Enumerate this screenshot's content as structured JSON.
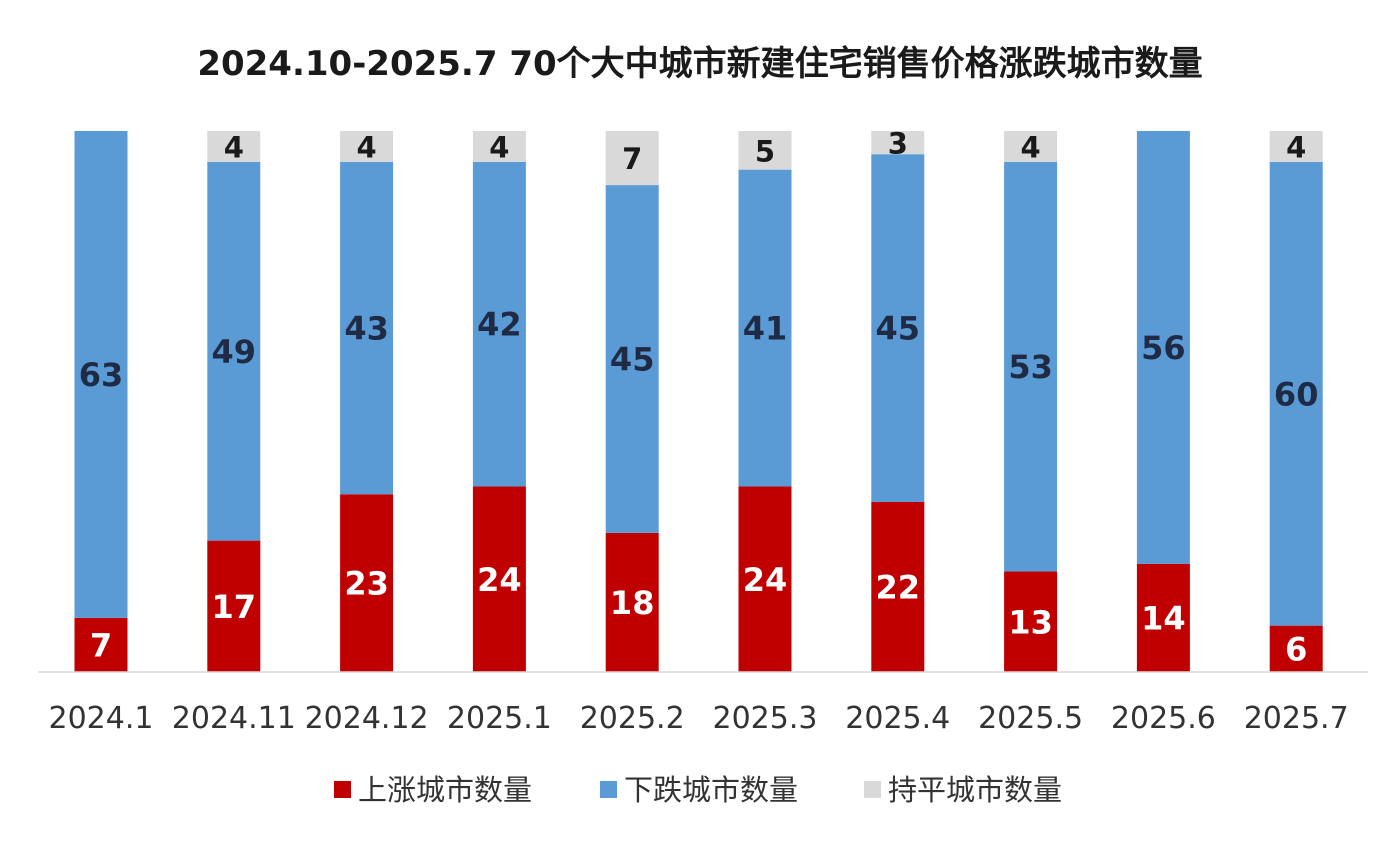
{
  "chart_data": {
    "type": "bar",
    "stacked": true,
    "title": "2024.10-2025.7  70个大中城市新建住宅销售价格涨跌城市数量",
    "categories": [
      "2024.1",
      "2024.11",
      "2024.12",
      "2025.1",
      "2025.2",
      "2025.3",
      "2025.4",
      "2025.5",
      "2025.6",
      "2025.7"
    ],
    "series": [
      {
        "name": "上涨城市数量",
        "color": "#c00000",
        "values": [
          7,
          17,
          23,
          24,
          18,
          24,
          22,
          13,
          14,
          6
        ]
      },
      {
        "name": "下跌城市数量",
        "color": "#5b9bd5",
        "values": [
          63,
          49,
          43,
          42,
          45,
          41,
          45,
          53,
          56,
          60
        ]
      },
      {
        "name": "持平城市数量",
        "color": "#d9d9d9",
        "values": [
          0,
          4,
          4,
          4,
          7,
          5,
          3,
          4,
          0,
          4
        ]
      }
    ],
    "ylim": [
      0,
      70
    ],
    "grid": false,
    "legend_position": "bottom",
    "data_labels": true
  }
}
